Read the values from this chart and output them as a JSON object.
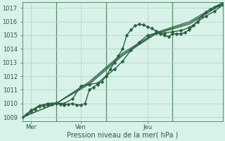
{
  "title": "",
  "xlabel": "Pression niveau de la mer( hPa )",
  "bg_color": "#d8f2ea",
  "grid_color": "#b0d8c8",
  "line_color": "#2a6040",
  "vline_color": "#5a8a6a",
  "ylim": [
    1008.7,
    1017.4
  ],
  "xlim": [
    0,
    96
  ],
  "yticks": [
    1009,
    1010,
    1011,
    1012,
    1013,
    1014,
    1015,
    1016,
    1017
  ],
  "day_ticks": [
    4,
    28,
    60
  ],
  "day_labels": [
    "Mer",
    "Ven",
    "Jeu"
  ],
  "day_vlines": [
    16,
    40,
    72
  ],
  "series": [
    {
      "x": [
        0,
        2,
        4,
        6,
        8,
        10,
        12,
        14,
        16,
        18,
        20,
        22,
        24,
        26,
        28,
        30,
        32,
        34,
        36,
        38,
        40,
        42,
        44,
        46,
        48,
        50,
        52,
        54,
        56,
        58,
        60,
        62,
        64,
        66,
        68,
        70,
        72,
        74,
        76,
        78,
        80,
        82,
        84,
        86,
        88,
        90,
        92,
        94,
        96
      ],
      "y": [
        1009.0,
        1009.2,
        1009.4,
        1009.6,
        1009.8,
        1009.85,
        1009.9,
        1009.95,
        1010.0,
        1009.95,
        1009.9,
        1009.95,
        1010.0,
        1009.9,
        1009.9,
        1010.0,
        1011.0,
        1011.2,
        1011.4,
        1011.6,
        1012.0,
        1012.5,
        1013.0,
        1013.5,
        1014.0,
        1015.0,
        1015.4,
        1015.7,
        1015.8,
        1015.75,
        1015.6,
        1015.5,
        1015.3,
        1015.1,
        1015.0,
        1014.9,
        1015.1,
        1015.1,
        1015.1,
        1015.2,
        1015.4,
        1015.7,
        1016.0,
        1016.4,
        1016.7,
        1016.9,
        1017.05,
        1017.15,
        1017.3
      ],
      "marker": true,
      "lw": 1.0,
      "ms": 2.5
    },
    {
      "x": [
        0,
        16,
        32,
        48,
        64,
        80,
        96
      ],
      "y": [
        1009.0,
        1010.0,
        1011.4,
        1013.5,
        1015.1,
        1015.8,
        1017.3
      ],
      "marker": false,
      "lw": 0.8,
      "ms": 0
    },
    {
      "x": [
        0,
        16,
        32,
        48,
        64,
        80,
        96
      ],
      "y": [
        1009.0,
        1010.0,
        1011.5,
        1013.6,
        1015.15,
        1015.9,
        1017.3
      ],
      "marker": false,
      "lw": 0.8,
      "ms": 0
    },
    {
      "x": [
        0,
        16,
        32,
        48,
        64,
        80,
        96
      ],
      "y": [
        1009.0,
        1010.0,
        1011.6,
        1013.7,
        1015.2,
        1016.0,
        1017.4
      ],
      "marker": false,
      "lw": 0.8,
      "ms": 0
    },
    {
      "x": [
        0,
        4,
        8,
        12,
        16,
        20,
        24,
        28,
        32,
        36,
        40,
        44,
        48,
        52,
        56,
        60,
        64,
        68,
        72,
        76,
        80,
        84,
        88,
        92,
        96
      ],
      "y": [
        1009.0,
        1009.5,
        1009.85,
        1010.0,
        1010.05,
        1010.0,
        1010.35,
        1011.3,
        1011.4,
        1011.5,
        1012.0,
        1012.5,
        1013.1,
        1013.9,
        1014.5,
        1015.0,
        1015.15,
        1015.15,
        1015.25,
        1015.35,
        1015.55,
        1016.0,
        1016.4,
        1016.75,
        1017.2
      ],
      "marker": true,
      "lw": 1.0,
      "ms": 2.5
    }
  ],
  "xlabel_fontsize": 7,
  "ytick_fontsize": 6,
  "xtick_fontsize": 6
}
